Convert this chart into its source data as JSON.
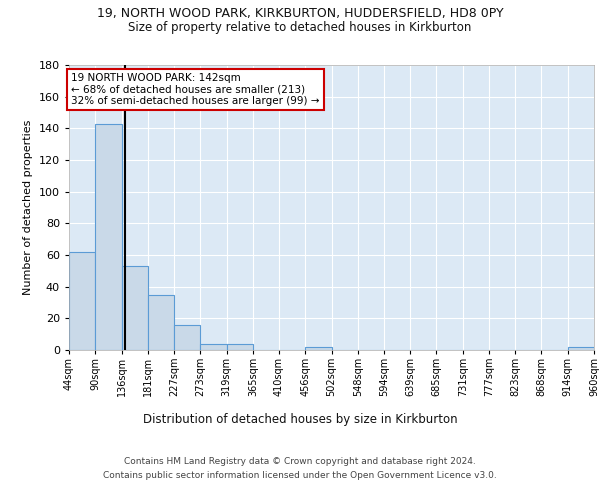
{
  "title_line1": "19, NORTH WOOD PARK, KIRKBURTON, HUDDERSFIELD, HD8 0PY",
  "title_line2": "Size of property relative to detached houses in Kirkburton",
  "xlabel": "Distribution of detached houses by size in Kirkburton",
  "ylabel": "Number of detached properties",
  "bin_edges": [
    44,
    90,
    136,
    181,
    227,
    273,
    319,
    365,
    410,
    456,
    502,
    548,
    594,
    639,
    685,
    731,
    777,
    823,
    868,
    914,
    960
  ],
  "bar_heights": [
    62,
    143,
    53,
    35,
    16,
    4,
    4,
    0,
    0,
    2,
    0,
    0,
    0,
    0,
    0,
    0,
    0,
    0,
    0,
    2
  ],
  "bar_color": "#c9d9e8",
  "bar_edge_color": "#5b9bd5",
  "property_line_x": 142,
  "annotation_title": "19 NORTH WOOD PARK: 142sqm",
  "annotation_line1": "← 68% of detached houses are smaller (213)",
  "annotation_line2": "32% of semi-detached houses are larger (99) →",
  "annotation_box_color": "#ffffff",
  "annotation_box_edge": "#cc0000",
  "vline_color": "#000000",
  "ylim": [
    0,
    180
  ],
  "yticks": [
    0,
    20,
    40,
    60,
    80,
    100,
    120,
    140,
    160,
    180
  ],
  "bg_color": "#dce9f5",
  "grid_color": "#ffffff",
  "footer_line1": "Contains HM Land Registry data © Crown copyright and database right 2024.",
  "footer_line2": "Contains public sector information licensed under the Open Government Licence v3.0."
}
